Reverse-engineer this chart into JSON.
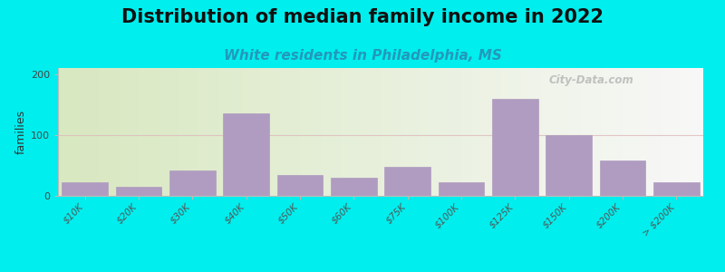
{
  "title": "Distribution of median family income in 2022",
  "subtitle": "White residents in Philadelphia, MS",
  "ylabel": "families",
  "bar_color": "#b09cc0",
  "background_outer": "#00eeee",
  "background_inner_left": "#d8e8c0",
  "background_inner_right": "#f8f8f8",
  "categories": [
    "$10K",
    "$20K",
    "$30K",
    "$40K",
    "$50K",
    "$60K",
    "$75K",
    "$100K",
    "$125K",
    "$150K",
    "$200K",
    "> $200K"
  ],
  "values": [
    22,
    15,
    42,
    135,
    35,
    30,
    48,
    22,
    160,
    100,
    58,
    22
  ],
  "ylim": [
    0,
    210
  ],
  "yticks": [
    0,
    100,
    200
  ],
  "watermark": "City-Data.com",
  "title_fontsize": 15,
  "subtitle_fontsize": 11,
  "ylabel_fontsize": 9,
  "tick_fontsize": 7.5
}
